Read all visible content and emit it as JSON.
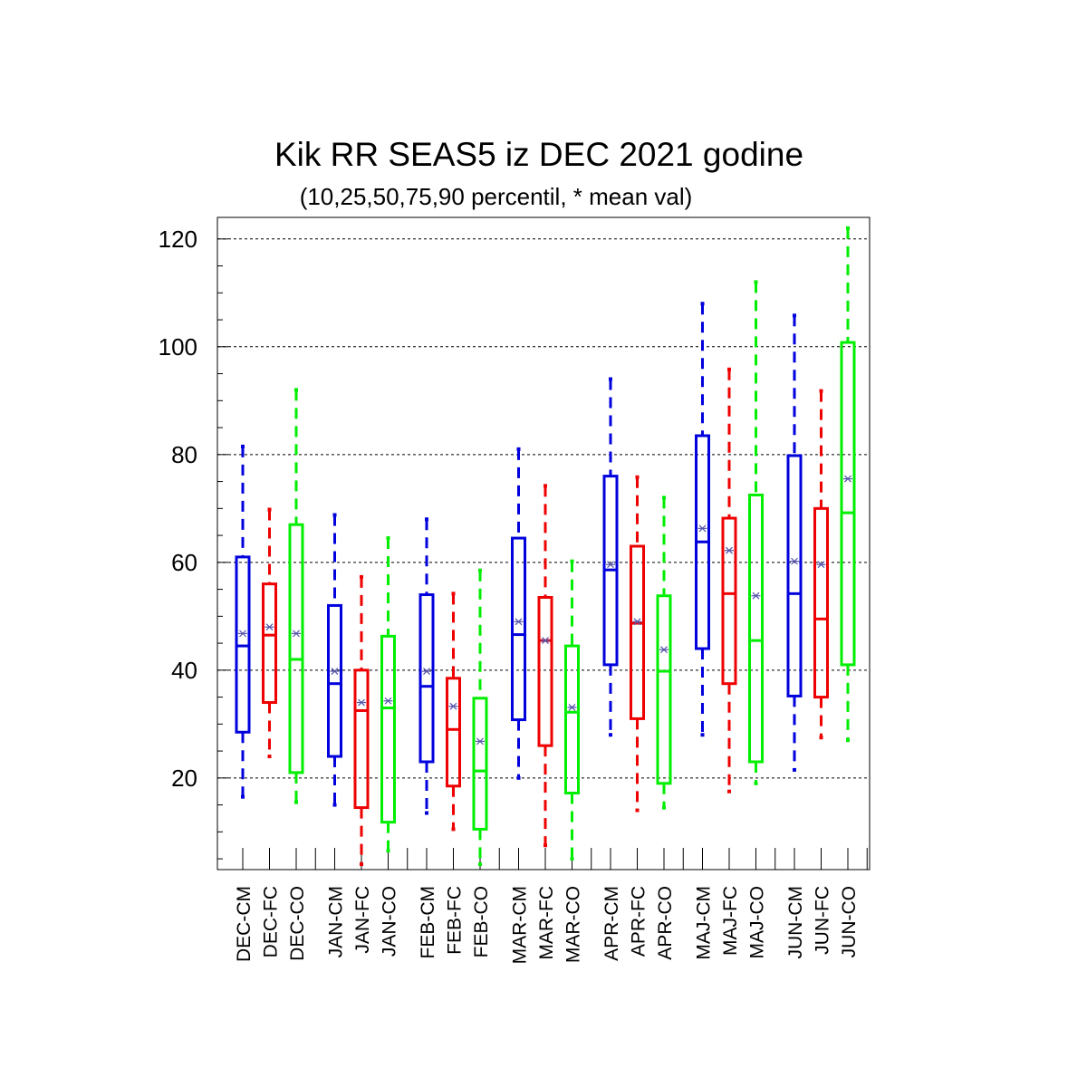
{
  "chart_data": {
    "type": "box",
    "title": "Kik RR SEAS5 iz DEC 2021 godine",
    "subtitle": "(10,25,50,75,90 percentil, * mean val)",
    "xlabel": "",
    "ylabel": "",
    "ylim": [
      3,
      124
    ],
    "yticks": [
      20,
      40,
      60,
      80,
      100,
      120
    ],
    "grid": "horizontal dashed at major y ticks",
    "colors": {
      "CM": "#0000dd",
      "FC": "#ee0000",
      "CO": "#00ee00",
      "mean_marker": "#5555aa"
    },
    "categories": [
      "DEC-CM",
      "DEC-FC",
      "DEC-CO",
      "JAN-CM",
      "JAN-FC",
      "JAN-CO",
      "FEB-CM",
      "FEB-FC",
      "FEB-CO",
      "MAR-CM",
      "MAR-FC",
      "MAR-CO",
      "APR-CM",
      "APR-FC",
      "APR-CO",
      "MAJ-CM",
      "MAJ-FC",
      "MAJ-CO",
      "JUN-CM",
      "JUN-FC",
      "JUN-CO"
    ],
    "boxes": [
      {
        "label": "DEC-CM",
        "group": "CM",
        "p10": 16.5,
        "p25": 28.5,
        "p50": 44.5,
        "p75": 61,
        "p90": 81.5,
        "mean": 46.8
      },
      {
        "label": "DEC-FC",
        "group": "FC",
        "p10": 24,
        "p25": 34,
        "p50": 46.5,
        "p75": 56,
        "p90": 69.8,
        "mean": 48
      },
      {
        "label": "DEC-CO",
        "group": "CO",
        "p10": 15.5,
        "p25": 21,
        "p50": 42,
        "p75": 67,
        "p90": 92,
        "mean": 46.8
      },
      {
        "label": "JAN-CM",
        "group": "CM",
        "p10": 15,
        "p25": 24,
        "p50": 37.5,
        "p75": 52,
        "p90": 68.8,
        "mean": 39.8
      },
      {
        "label": "JAN-FC",
        "group": "FC",
        "p10": 4,
        "p25": 14.5,
        "p50": 32.5,
        "p75": 40,
        "p90": 57.3,
        "mean": 34
      },
      {
        "label": "JAN-CO",
        "group": "CO",
        "p10": 6.5,
        "p25": 11.8,
        "p50": 33,
        "p75": 46.3,
        "p90": 64.5,
        "mean": 34.3
      },
      {
        "label": "FEB-CM",
        "group": "CM",
        "p10": 13.5,
        "p25": 23,
        "p50": 37,
        "p75": 54,
        "p90": 68,
        "mean": 39.8
      },
      {
        "label": "FEB-FC",
        "group": "FC",
        "p10": 10.5,
        "p25": 18.5,
        "p50": 29,
        "p75": 38.5,
        "p90": 54.2,
        "mean": 33.3
      },
      {
        "label": "FEB-CO",
        "group": "CO",
        "p10": 4,
        "p25": 10.5,
        "p50": 21.3,
        "p75": 34.8,
        "p90": 58.5,
        "mean": 26.8
      },
      {
        "label": "MAR-CM",
        "group": "CM",
        "p10": 20,
        "p25": 30.8,
        "p50": 46.6,
        "p75": 64.5,
        "p90": 81,
        "mean": 49
      },
      {
        "label": "MAR-FC",
        "group": "FC",
        "p10": 7.5,
        "p25": 26,
        "p50": 45.5,
        "p75": 53.5,
        "p90": 74.2,
        "mean": 45.5
      },
      {
        "label": "MAR-CO",
        "group": "CO",
        "p10": 5,
        "p25": 17.2,
        "p50": 32.2,
        "p75": 44.5,
        "p90": 60.2,
        "mean": 33.1
      },
      {
        "label": "APR-CM",
        "group": "CM",
        "p10": 28,
        "p25": 41,
        "p50": 58.6,
        "p75": 76,
        "p90": 94,
        "mean": 59.6
      },
      {
        "label": "APR-FC",
        "group": "FC",
        "p10": 14,
        "p25": 31,
        "p50": 48.7,
        "p75": 63,
        "p90": 75.8,
        "mean": 49
      },
      {
        "label": "APR-CO",
        "group": "CO",
        "p10": 14.5,
        "p25": 19,
        "p50": 39.8,
        "p75": 53.8,
        "p90": 72,
        "mean": 43.8
      },
      {
        "label": "MAJ-CM",
        "group": "CM",
        "p10": 28,
        "p25": 44,
        "p50": 63.8,
        "p75": 83.5,
        "p90": 108,
        "mean": 66.3
      },
      {
        "label": "MAJ-FC",
        "group": "FC",
        "p10": 17.5,
        "p25": 37.5,
        "p50": 54.2,
        "p75": 68.2,
        "p90": 95.8,
        "mean": 62.2
      },
      {
        "label": "MAJ-CO",
        "group": "CO",
        "p10": 19,
        "p25": 23,
        "p50": 45.5,
        "p75": 72.5,
        "p90": 112,
        "mean": 53.8
      },
      {
        "label": "JUN-CM",
        "group": "CM",
        "p10": 21.5,
        "p25": 35.2,
        "p50": 54.2,
        "p75": 79.8,
        "p90": 105.8,
        "mean": 60.2
      },
      {
        "label": "JUN-FC",
        "group": "FC",
        "p10": 27.5,
        "p25": 35,
        "p50": 49.5,
        "p75": 70,
        "p90": 91.8,
        "mean": 59.6
      },
      {
        "label": "JUN-CO",
        "group": "CO",
        "p10": 27,
        "p25": 41,
        "p50": 69.2,
        "p75": 100.8,
        "p90": 122,
        "mean": 75.5
      }
    ]
  }
}
